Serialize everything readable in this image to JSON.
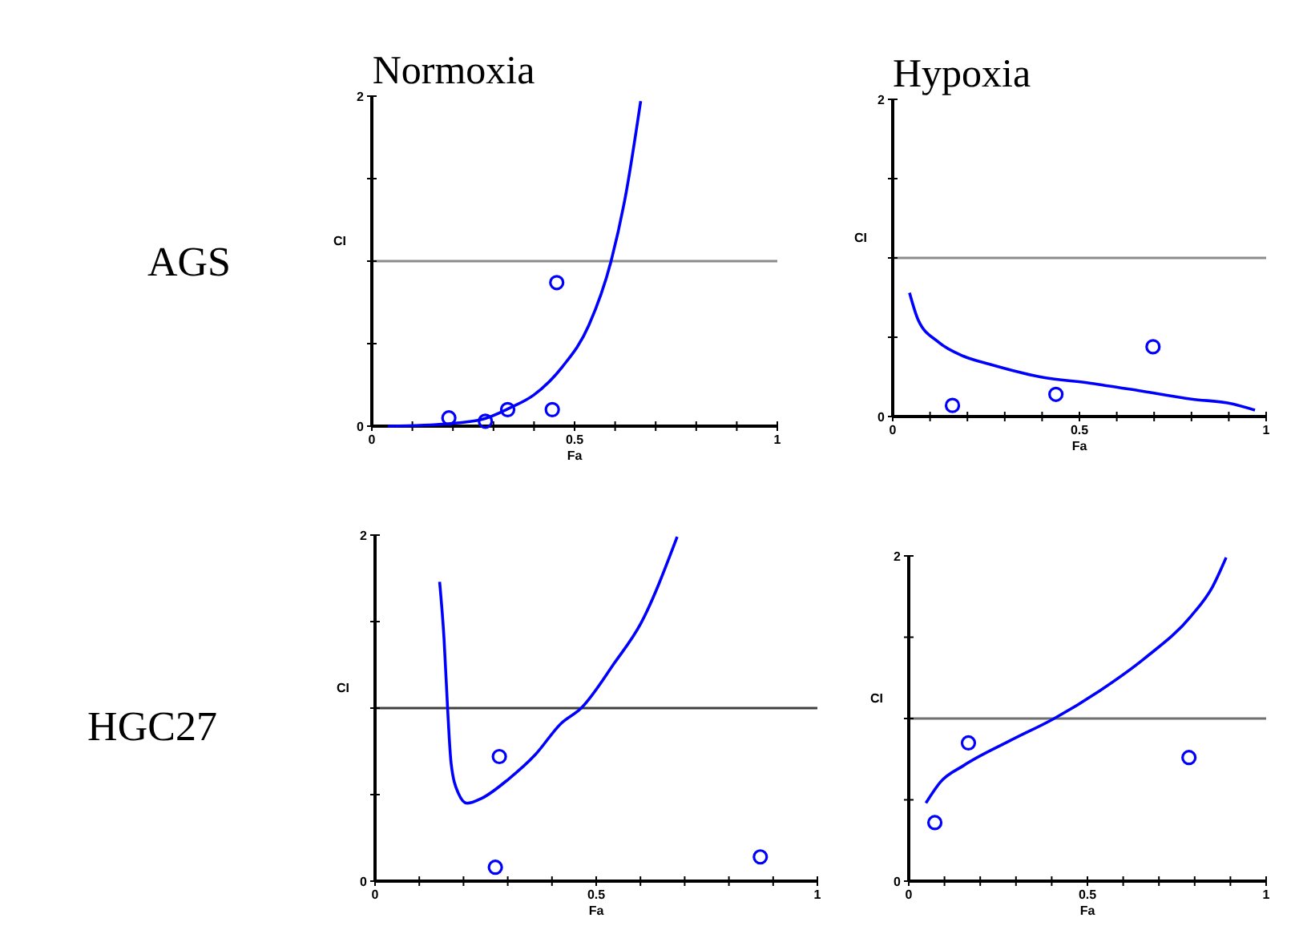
{
  "chart_data": [
    {
      "type": "scatter",
      "title": "Normoxia",
      "xlabel": "Fa",
      "ylabel": "CI",
      "annotations": [
        "AGS"
      ],
      "xlim": [
        0,
        1
      ],
      "ylim": [
        0,
        2
      ],
      "xticks": [
        {
          "value": 0,
          "label": "0"
        },
        {
          "value": 0.1,
          "label": null
        },
        {
          "value": 0.2,
          "label": null
        },
        {
          "value": 0.3,
          "label": null
        },
        {
          "value": 0.4,
          "label": null
        },
        {
          "value": 0.5,
          "label": "0.5"
        },
        {
          "value": 0.6,
          "label": null
        },
        {
          "value": 0.7,
          "label": null
        },
        {
          "value": 0.8,
          "label": null
        },
        {
          "value": 0.9,
          "label": null
        },
        {
          "value": 1,
          "label": "1"
        }
      ],
      "yticks": [
        {
          "value": 0,
          "label": "0"
        },
        {
          "value": 0.5,
          "label": null
        },
        {
          "value": 1,
          "label": null
        },
        {
          "value": 1.5,
          "label": null
        },
        {
          "value": 2,
          "label": "2"
        }
      ],
      "ref_lines": [
        {
          "axis": "y",
          "value": 1,
          "label": null,
          "color": "#8c8c8c"
        }
      ],
      "series": [
        {
          "color": "#0000ff",
          "marker": "circle",
          "x": [
            0.19,
            0.28,
            0.335,
            0.445,
            0.456
          ],
          "values": [
            0.05,
            0.03,
            0.1,
            0.1,
            0.87
          ]
        },
        {
          "type": "line",
          "color": "#0000ff",
          "marker": "none",
          "line_style": "solid",
          "x": [
            0.04,
            0.16,
            0.27,
            0.34,
            0.4,
            0.47,
            0.535,
            0.59,
            0.626,
            0.663
          ],
          "values": [
            0,
            0.01,
            0.04,
            0.11,
            0.19,
            0.36,
            0.61,
            1.0,
            1.4,
            1.97
          ]
        }
      ]
    },
    {
      "type": "scatter",
      "title": "Hypoxia",
      "xlabel": "Fa",
      "ylabel": "CI",
      "xlim": [
        0,
        1
      ],
      "ylim": [
        0,
        2
      ],
      "xticks": [
        {
          "value": 0,
          "label": "0"
        },
        {
          "value": 0.1,
          "label": null
        },
        {
          "value": 0.2,
          "label": null
        },
        {
          "value": 0.3,
          "label": null
        },
        {
          "value": 0.4,
          "label": null
        },
        {
          "value": 0.5,
          "label": "0.5"
        },
        {
          "value": 0.6,
          "label": null
        },
        {
          "value": 0.7,
          "label": null
        },
        {
          "value": 0.8,
          "label": null
        },
        {
          "value": 0.9,
          "label": null
        },
        {
          "value": 1,
          "label": "1"
        }
      ],
      "yticks": [
        {
          "value": 0,
          "label": "0"
        },
        {
          "value": 0.5,
          "label": null
        },
        {
          "value": 1,
          "label": null
        },
        {
          "value": 1.5,
          "label": null
        },
        {
          "value": 2,
          "label": "2"
        }
      ],
      "ref_lines": [
        {
          "axis": "y",
          "value": 1,
          "label": null,
          "color": "#8c8c8c"
        }
      ],
      "series": [
        {
          "color": "#0000ff",
          "marker": "circle",
          "x": [
            0.16,
            0.437,
            0.697
          ],
          "values": [
            0.07,
            0.14,
            0.44
          ]
        },
        {
          "type": "line",
          "color": "#0000ff",
          "marker": "none",
          "line_style": "solid",
          "x": [
            0.045,
            0.068,
            0.122,
            0.19,
            0.26,
            0.395,
            0.53,
            0.667,
            0.8,
            0.91,
            0.97
          ],
          "values": [
            0.78,
            0.61,
            0.47,
            0.38,
            0.33,
            0.25,
            0.21,
            0.16,
            0.11,
            0.08,
            0.04
          ]
        }
      ]
    },
    {
      "type": "scatter",
      "xlabel": "Fa",
      "ylabel": "CI",
      "annotations": [
        "HGC27"
      ],
      "xlim": [
        0,
        1
      ],
      "ylim": [
        0,
        2
      ],
      "xticks": [
        {
          "value": 0,
          "label": "0"
        },
        {
          "value": 0.1,
          "label": null
        },
        {
          "value": 0.2,
          "label": null
        },
        {
          "value": 0.3,
          "label": null
        },
        {
          "value": 0.4,
          "label": null
        },
        {
          "value": 0.5,
          "label": "0.5"
        },
        {
          "value": 0.6,
          "label": null
        },
        {
          "value": 0.7,
          "label": null
        },
        {
          "value": 0.8,
          "label": null
        },
        {
          "value": 0.9,
          "label": null
        },
        {
          "value": 1,
          "label": "1"
        }
      ],
      "yticks": [
        {
          "value": 0,
          "label": "0"
        },
        {
          "value": 0.5,
          "label": null
        },
        {
          "value": 1,
          "label": null
        },
        {
          "value": 1.5,
          "label": null
        },
        {
          "value": 2,
          "label": "2"
        }
      ],
      "ref_lines": [
        {
          "axis": "y",
          "value": 1,
          "label": null,
          "color": "#404040"
        }
      ],
      "series": [
        {
          "color": "#0000ff",
          "marker": "circle",
          "x": [
            0.281,
            0.272,
            0.871
          ],
          "values": [
            0.72,
            0.08,
            0.14
          ]
        },
        {
          "type": "line",
          "color": "#0000ff",
          "marker": "none",
          "line_style": "solid",
          "x": [
            0.146,
            0.156,
            0.164,
            0.172,
            0.188,
            0.208,
            0.242,
            0.302,
            0.362,
            0.42,
            0.466,
            0.541,
            0.601,
            0.683
          ],
          "values": [
            1.73,
            1.4,
            1.0,
            0.68,
            0.51,
            0.45,
            0.48,
            0.59,
            0.73,
            0.91,
            1.0,
            1.26,
            1.49,
            1.99
          ]
        }
      ]
    },
    {
      "type": "scatter",
      "xlabel": "Fa",
      "ylabel": "CI",
      "xlim": [
        0,
        1
      ],
      "ylim": [
        0,
        2
      ],
      "xticks": [
        {
          "value": 0,
          "label": "0"
        },
        {
          "value": 0.1,
          "label": null
        },
        {
          "value": 0.2,
          "label": null
        },
        {
          "value": 0.3,
          "label": null
        },
        {
          "value": 0.4,
          "label": null
        },
        {
          "value": 0.5,
          "label": "0.5"
        },
        {
          "value": 0.6,
          "label": null
        },
        {
          "value": 0.7,
          "label": null
        },
        {
          "value": 0.8,
          "label": null
        },
        {
          "value": 0.9,
          "label": null
        },
        {
          "value": 1,
          "label": "1"
        }
      ],
      "yticks": [
        {
          "value": 0,
          "label": "0"
        },
        {
          "value": 0.5,
          "label": null
        },
        {
          "value": 1,
          "label": null
        },
        {
          "value": 1.5,
          "label": null
        },
        {
          "value": 2,
          "label": "2"
        }
      ],
      "ref_lines": [
        {
          "axis": "y",
          "value": 1,
          "label": null,
          "color": "#707070"
        }
      ],
      "series": [
        {
          "color": "#0000ff",
          "marker": "circle",
          "x": [
            0.073,
            0.167,
            0.784
          ],
          "values": [
            0.36,
            0.85,
            0.76
          ]
        },
        {
          "type": "line",
          "color": "#0000ff",
          "marker": "none",
          "line_style": "solid",
          "x": [
            0.048,
            0.089,
            0.153,
            0.28,
            0.407,
            0.534,
            0.66,
            0.79,
            0.85,
            0.888
          ],
          "values": [
            0.48,
            0.61,
            0.71,
            0.86,
            1.0,
            1.17,
            1.37,
            1.63,
            1.81,
            1.99
          ]
        }
      ]
    }
  ]
}
